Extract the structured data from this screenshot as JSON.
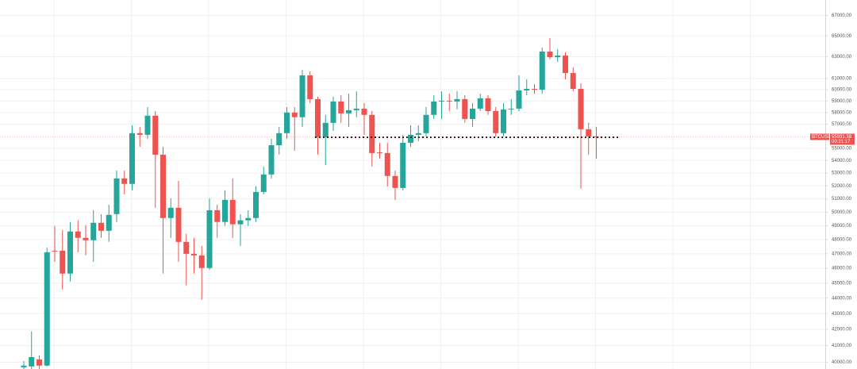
{
  "chart_data": {
    "type": "candlestick",
    "symbol": "BTCUSD",
    "current_price": 55931.38,
    "countdown": "00:21:17",
    "support_level": 55900,
    "up_color": "#26a69a",
    "down_color": "#ef5350",
    "yscale": "log",
    "grid": true,
    "ylim": [
      39600,
      68560
    ],
    "yticks": [
      {
        "value": 40000,
        "label": "40000.00"
      },
      {
        "value": 41000,
        "label": "41000.00"
      },
      {
        "value": 42000,
        "label": "42000.00"
      },
      {
        "value": 43000,
        "label": "43000.00"
      },
      {
        "value": 44000,
        "label": "44000.00"
      },
      {
        "value": 45000,
        "label": "45000.00"
      },
      {
        "value": 46000,
        "label": "46000.00"
      },
      {
        "value": 47000,
        "label": "47000.00"
      },
      {
        "value": 48000,
        "label": "48000.00"
      },
      {
        "value": 49000,
        "label": "49000.00"
      },
      {
        "value": 50000,
        "label": "50000.00"
      },
      {
        "value": 51000,
        "label": "51000.00"
      },
      {
        "value": 52000,
        "label": "52000.00"
      },
      {
        "value": 53000,
        "label": "53000.00"
      },
      {
        "value": 54000,
        "label": "54000.00"
      },
      {
        "value": 55000,
        "label": "55000.00"
      },
      {
        "value": 57000,
        "label": "57000.00"
      },
      {
        "value": 58000,
        "label": "58000.00"
      },
      {
        "value": 59000,
        "label": "59000.00"
      },
      {
        "value": 60000,
        "label": "60000.00"
      },
      {
        "value": 61000,
        "label": "61000.00"
      },
      {
        "value": 63000,
        "label": "63000.00"
      },
      {
        "value": 65000,
        "label": "65000.00"
      },
      {
        "value": 67000,
        "label": "67000.00"
      }
    ],
    "open": [
      39700,
      39750,
      40170,
      39800,
      47220,
      47220,
      45640,
      48590,
      48130,
      47960,
      49220,
      48640,
      49860,
      52580,
      52150,
      56240,
      56100,
      57720,
      54470,
      49570,
      50330,
      47840,
      47000,
      46890,
      46020,
      50150,
      49280,
      50930,
      49110,
      49400,
      49570,
      51530,
      52890,
      55240,
      56240,
      57990,
      57590,
      61290,
      59160,
      55900,
      57110,
      58950,
      57920,
      58190,
      58330,
      57790,
      54660,
      54600,
      52770,
      51840,
      55440,
      56100,
      56240,
      57790,
      58950,
      59020,
      58950,
      59160,
      57440,
      58330,
      59230,
      58120,
      56240,
      58260,
      58330,
      59930,
      60070,
      60000,
      63500,
      62970,
      63120,
      61500,
      60070,
      56570,
      55970
    ],
    "high": [
      40070,
      41880,
      40410,
      47450,
      48990,
      48700,
      49280,
      49400,
      49050,
      50150,
      49860,
      50570,
      53200,
      53200,
      56900,
      56770,
      58470,
      58120,
      55110,
      51050,
      52390,
      48420,
      48130,
      47560,
      51050,
      50570,
      51650,
      52580,
      49860,
      50150,
      51960,
      53510,
      55770,
      56770,
      58470,
      58470,
      61790,
      61650,
      59370,
      57790,
      59370,
      59510,
      59640,
      59850,
      58810,
      58120,
      55440,
      55440,
      53200,
      56100,
      56900,
      56900,
      58470,
      59510,
      59850,
      59640,
      59850,
      59510,
      58810,
      59640,
      59510,
      58470,
      58810,
      59160,
      61290,
      60930,
      60500,
      63870,
      64780,
      63720,
      63430,
      62020,
      60570,
      57110,
      56770
    ],
    "low": [
      39600,
      39600,
      39600,
      39750,
      46450,
      44570,
      45110,
      47110,
      46890,
      46450,
      48130,
      47840,
      49280,
      51350,
      51650,
      55110,
      55770,
      50330,
      45640,
      48130,
      46450,
      44840,
      45640,
      43900,
      45910,
      48130,
      48990,
      48130,
      47560,
      48990,
      49280,
      51350,
      52580,
      54470,
      55770,
      54790,
      56770,
      58810,
      54470,
      53640,
      56430,
      57110,
      56770,
      57590,
      56100,
      53510,
      54150,
      51960,
      50930,
      51650,
      55110,
      55570,
      55970,
      57440,
      57440,
      58120,
      58260,
      57110,
      56770,
      58120,
      57790,
      55970,
      55970,
      57790,
      58120,
      59510,
      59640,
      59640,
      62750,
      62520,
      60930,
      59850,
      51780,
      54470,
      54150
    ],
    "close": [
      39800,
      40310,
      39800,
      47110,
      47170,
      45640,
      48590,
      48130,
      47960,
      49220,
      48640,
      49800,
      52580,
      52150,
      56240,
      56100,
      57720,
      54470,
      49570,
      50330,
      47840,
      47000,
      46890,
      46020,
      50150,
      49280,
      50930,
      49110,
      49400,
      49570,
      51530,
      52890,
      55240,
      56240,
      57990,
      57590,
      61290,
      59160,
      55900,
      57110,
      58950,
      57920,
      58190,
      58330,
      57790,
      54600,
      54600,
      52770,
      51840,
      55440,
      56100,
      56240,
      57790,
      58950,
      59020,
      58950,
      59160,
      57440,
      58330,
      59230,
      58120,
      56240,
      58260,
      58330,
      59930,
      60070,
      60000,
      63500,
      62970,
      63120,
      61500,
      60070,
      56570,
      55970,
      55900
    ]
  }
}
